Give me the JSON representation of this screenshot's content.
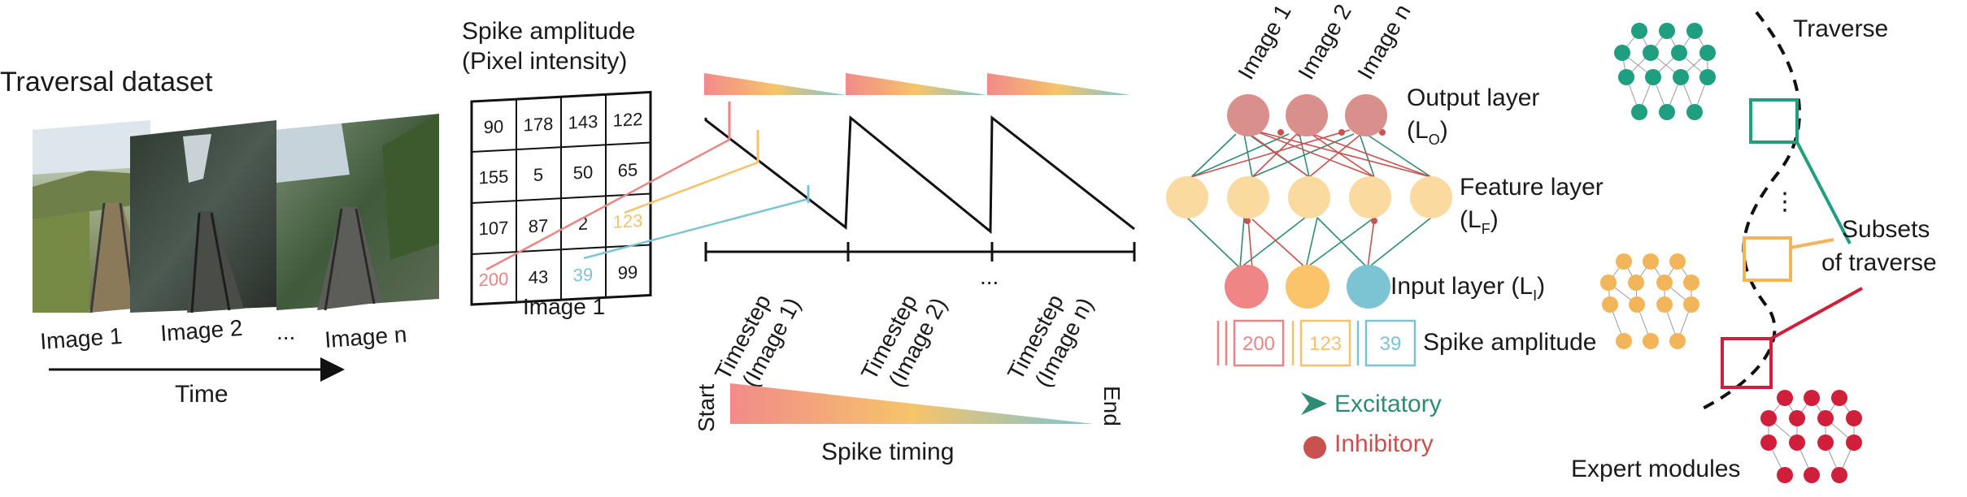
{
  "panel_a": {
    "title": "Traversal dataset",
    "images": [
      "Image 1",
      "Image 2",
      "Image n"
    ],
    "ellipsis": "...",
    "time_label": "Time"
  },
  "panel_b": {
    "title_line1": "Spike amplitude",
    "title_line2": "(Pixel intensity)",
    "grid": [
      [
        "90",
        "178",
        "143",
        "122"
      ],
      [
        "155",
        "5",
        "50",
        "65"
      ],
      [
        "107",
        "87",
        "2",
        "123"
      ],
      [
        "200",
        "43",
        "39",
        "99"
      ]
    ],
    "caption": "Image 1"
  },
  "panel_c": {
    "timesteps": [
      {
        "line1": "Timestep",
        "line2": "(Image 1)"
      },
      {
        "line1": "Timestep",
        "line2": "(Image 2)"
      },
      {
        "line1": "Timestep",
        "line2": "(Image n)"
      }
    ],
    "ellipsis": "...",
    "start_label": "Start",
    "end_label": "End",
    "timing_label": "Spike timing"
  },
  "panel_d": {
    "output_images": [
      "Image 1",
      "Image 2",
      "Image n"
    ],
    "output_layer": "Output layer",
    "output_symbol": "(L",
    "output_sub": "O",
    "feature_layer": "Feature layer",
    "feature_symbol": "(L",
    "feature_sub": "F",
    "input_layer": "Input layer (L",
    "input_sub": "I",
    "spike_values": [
      "200",
      "123",
      "39"
    ],
    "spike_amplitude": "Spike amplitude",
    "excitatory": "Excitatory",
    "inhibitory": "Inhibitory"
  },
  "panel_e": {
    "traverse": "Traverse",
    "subsets_line1": "Subsets",
    "subsets_line2": "of traverse",
    "vertical_ellipsis": "⋮",
    "expert_modules": "Expert modules"
  },
  "colors": {
    "red": "#e88585",
    "yellow": "#f5c26b",
    "blue": "#7cc4d4",
    "output_node": "#d9908c",
    "feature_node": "#fbdaa0",
    "excitatory": "#2e8b74",
    "inhibitory": "#c8524f",
    "expert_green": "#1f9e80",
    "expert_yellow": "#f2b55a",
    "expert_red": "#cf1f3a"
  }
}
